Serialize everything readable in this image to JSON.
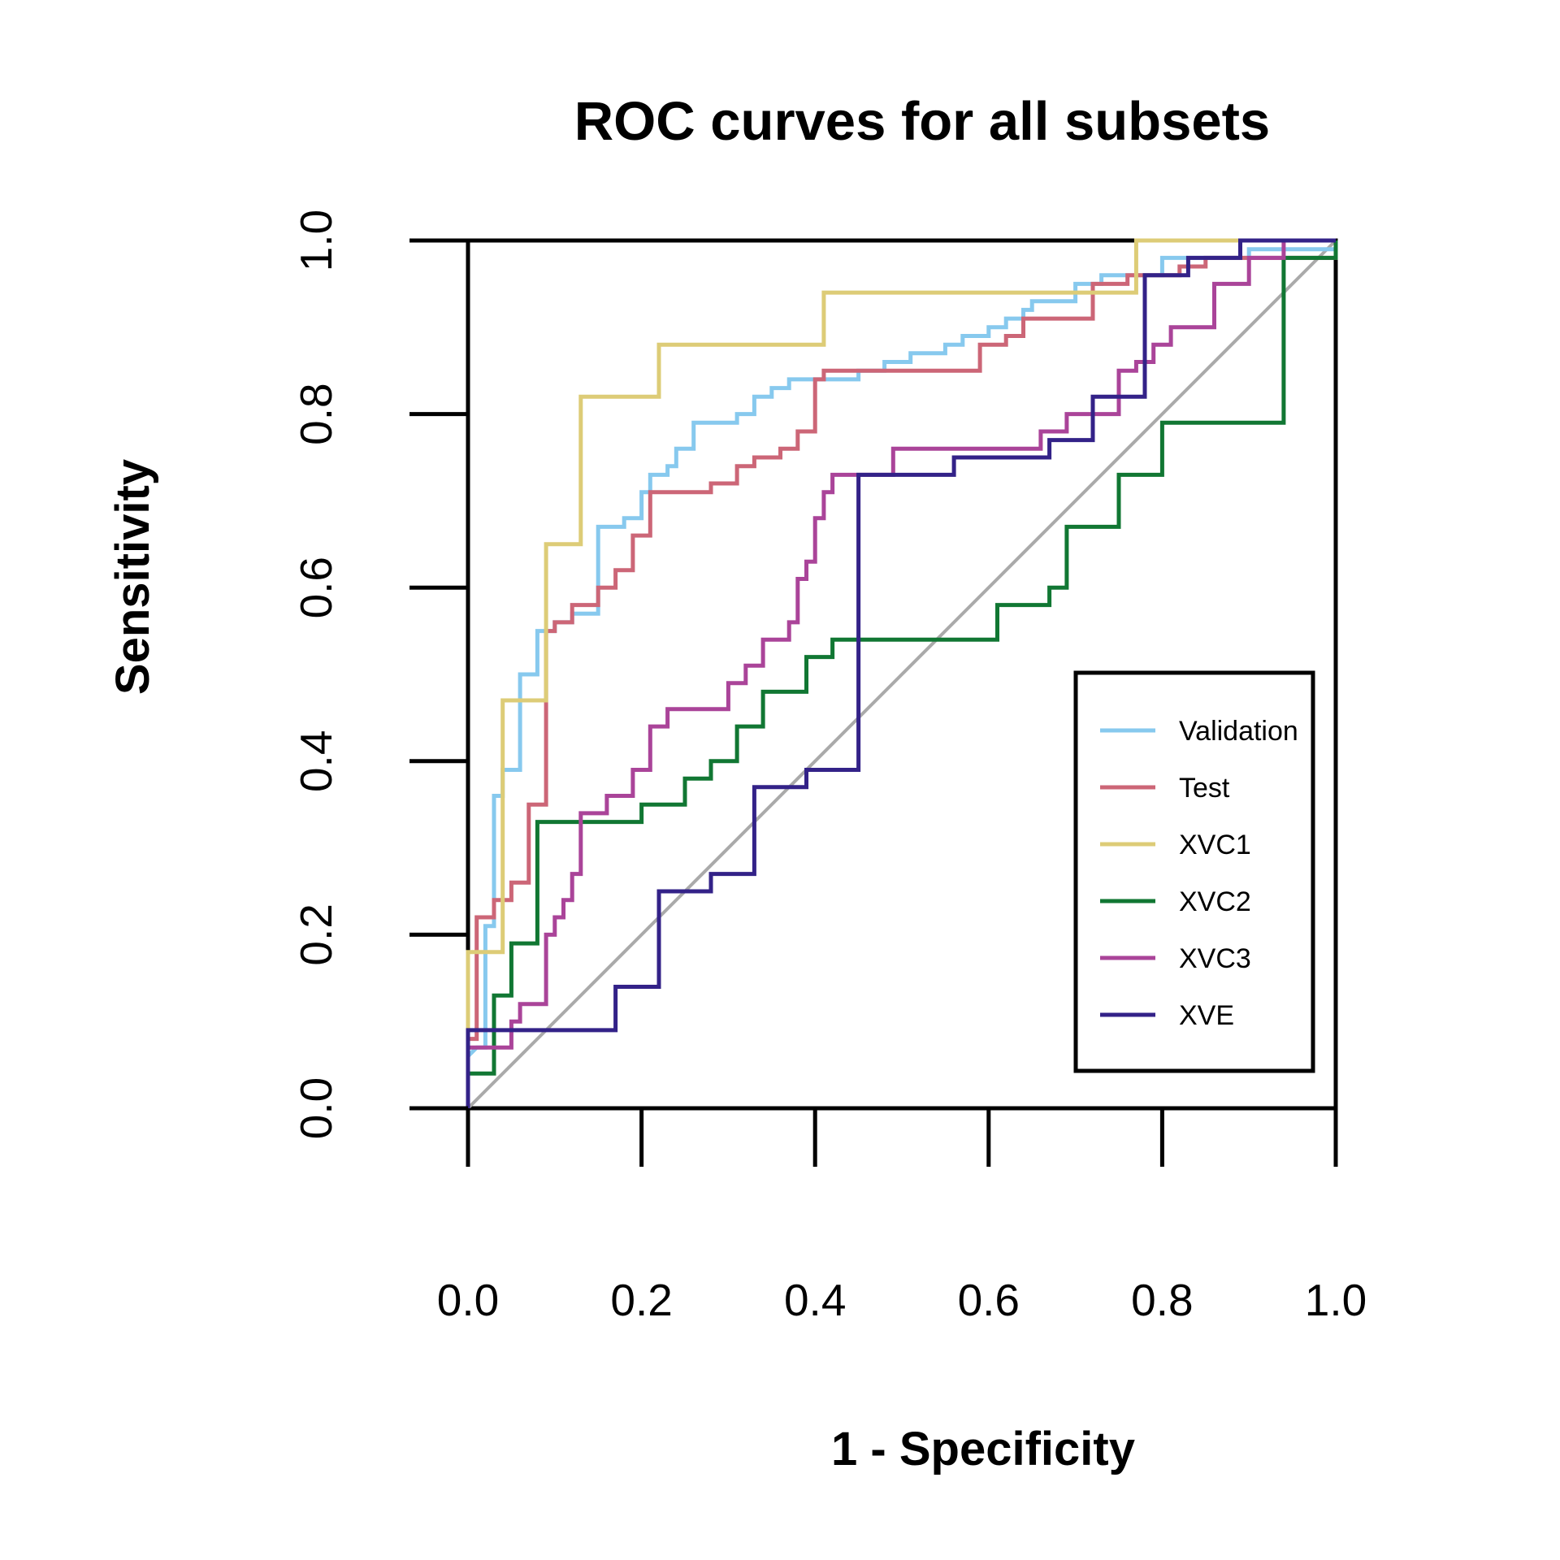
{
  "chart_data": {
    "type": "line",
    "title": "ROC curves for all subsets",
    "xlabel": "1 - Specificity",
    "ylabel": "Sensitivity",
    "xlim": [
      0,
      1
    ],
    "ylim": [
      0,
      1
    ],
    "xticks": [
      "0.0",
      "0.2",
      "0.4",
      "0.6",
      "0.8",
      "1.0"
    ],
    "yticks": [
      "0.0",
      "0.2",
      "0.4",
      "0.6",
      "0.8",
      "1.0"
    ],
    "grid": false,
    "legend_position": "bottom-right",
    "reference_line": {
      "points": [
        [
          0,
          0
        ],
        [
          1,
          1
        ]
      ],
      "color": "#aaaaaa"
    },
    "series": [
      {
        "name": "Validation",
        "color": "#87c9ee",
        "points": [
          [
            0,
            0.06
          ],
          [
            0.01,
            0.07
          ],
          [
            0.02,
            0.07
          ],
          [
            0.02,
            0.21
          ],
          [
            0.03,
            0.21
          ],
          [
            0.03,
            0.36
          ],
          [
            0.04,
            0.36
          ],
          [
            0.04,
            0.39
          ],
          [
            0.06,
            0.39
          ],
          [
            0.06,
            0.5
          ],
          [
            0.08,
            0.5
          ],
          [
            0.08,
            0.55
          ],
          [
            0.1,
            0.55
          ],
          [
            0.1,
            0.56
          ],
          [
            0.12,
            0.56
          ],
          [
            0.12,
            0.57
          ],
          [
            0.15,
            0.57
          ],
          [
            0.15,
            0.67
          ],
          [
            0.18,
            0.67
          ],
          [
            0.18,
            0.68
          ],
          [
            0.2,
            0.68
          ],
          [
            0.2,
            0.71
          ],
          [
            0.21,
            0.71
          ],
          [
            0.21,
            0.73
          ],
          [
            0.23,
            0.73
          ],
          [
            0.23,
            0.74
          ],
          [
            0.24,
            0.74
          ],
          [
            0.24,
            0.76
          ],
          [
            0.26,
            0.76
          ],
          [
            0.26,
            0.79
          ],
          [
            0.31,
            0.79
          ],
          [
            0.31,
            0.8
          ],
          [
            0.33,
            0.8
          ],
          [
            0.33,
            0.82
          ],
          [
            0.35,
            0.82
          ],
          [
            0.35,
            0.83
          ],
          [
            0.37,
            0.83
          ],
          [
            0.37,
            0.84
          ],
          [
            0.45,
            0.84
          ],
          [
            0.45,
            0.85
          ],
          [
            0.48,
            0.85
          ],
          [
            0.48,
            0.86
          ],
          [
            0.51,
            0.86
          ],
          [
            0.51,
            0.87
          ],
          [
            0.55,
            0.87
          ],
          [
            0.55,
            0.88
          ],
          [
            0.57,
            0.88
          ],
          [
            0.57,
            0.89
          ],
          [
            0.6,
            0.89
          ],
          [
            0.6,
            0.9
          ],
          [
            0.62,
            0.9
          ],
          [
            0.62,
            0.91
          ],
          [
            0.64,
            0.91
          ],
          [
            0.64,
            0.92
          ],
          [
            0.65,
            0.92
          ],
          [
            0.65,
            0.93
          ],
          [
            0.7,
            0.93
          ],
          [
            0.7,
            0.95
          ],
          [
            0.73,
            0.95
          ],
          [
            0.73,
            0.96
          ],
          [
            0.8,
            0.96
          ],
          [
            0.8,
            0.98
          ],
          [
            0.9,
            0.98
          ],
          [
            0.9,
            0.99
          ],
          [
            1,
            0.99
          ],
          [
            1,
            1
          ]
        ]
      },
      {
        "name": "Test",
        "color": "#cc6677",
        "points": [
          [
            0,
            0.08
          ],
          [
            0.01,
            0.08
          ],
          [
            0.01,
            0.22
          ],
          [
            0.03,
            0.22
          ],
          [
            0.03,
            0.24
          ],
          [
            0.05,
            0.24
          ],
          [
            0.05,
            0.26
          ],
          [
            0.07,
            0.26
          ],
          [
            0.07,
            0.35
          ],
          [
            0.09,
            0.35
          ],
          [
            0.09,
            0.55
          ],
          [
            0.1,
            0.55
          ],
          [
            0.1,
            0.56
          ],
          [
            0.12,
            0.56
          ],
          [
            0.12,
            0.58
          ],
          [
            0.15,
            0.58
          ],
          [
            0.15,
            0.6
          ],
          [
            0.17,
            0.6
          ],
          [
            0.17,
            0.62
          ],
          [
            0.19,
            0.62
          ],
          [
            0.19,
            0.66
          ],
          [
            0.21,
            0.66
          ],
          [
            0.21,
            0.71
          ],
          [
            0.28,
            0.71
          ],
          [
            0.28,
            0.72
          ],
          [
            0.31,
            0.72
          ],
          [
            0.31,
            0.74
          ],
          [
            0.33,
            0.74
          ],
          [
            0.33,
            0.75
          ],
          [
            0.36,
            0.75
          ],
          [
            0.36,
            0.76
          ],
          [
            0.38,
            0.76
          ],
          [
            0.38,
            0.78
          ],
          [
            0.4,
            0.78
          ],
          [
            0.4,
            0.84
          ],
          [
            0.41,
            0.84
          ],
          [
            0.41,
            0.85
          ],
          [
            0.59,
            0.85
          ],
          [
            0.59,
            0.88
          ],
          [
            0.62,
            0.88
          ],
          [
            0.62,
            0.89
          ],
          [
            0.64,
            0.89
          ],
          [
            0.64,
            0.91
          ],
          [
            0.72,
            0.91
          ],
          [
            0.72,
            0.95
          ],
          [
            0.76,
            0.95
          ],
          [
            0.76,
            0.96
          ],
          [
            0.82,
            0.96
          ],
          [
            0.82,
            0.97
          ],
          [
            0.85,
            0.97
          ],
          [
            0.85,
            0.98
          ],
          [
            1,
            0.98
          ],
          [
            1,
            1
          ]
        ]
      },
      {
        "name": "XVC1",
        "color": "#ddcc77",
        "points": [
          [
            0,
            0.08
          ],
          [
            0,
            0.18
          ],
          [
            0.04,
            0.18
          ],
          [
            0.04,
            0.47
          ],
          [
            0.09,
            0.47
          ],
          [
            0.09,
            0.65
          ],
          [
            0.13,
            0.65
          ],
          [
            0.13,
            0.82
          ],
          [
            0.22,
            0.82
          ],
          [
            0.22,
            0.88
          ],
          [
            0.41,
            0.88
          ],
          [
            0.41,
            0.94
          ],
          [
            0.77,
            0.94
          ],
          [
            0.77,
            1
          ],
          [
            1,
            1
          ]
        ]
      },
      {
        "name": "XVC2",
        "color": "#117733",
        "points": [
          [
            0,
            0.04
          ],
          [
            0.03,
            0.04
          ],
          [
            0.03,
            0.13
          ],
          [
            0.05,
            0.13
          ],
          [
            0.05,
            0.19
          ],
          [
            0.08,
            0.19
          ],
          [
            0.08,
            0.33
          ],
          [
            0.2,
            0.33
          ],
          [
            0.2,
            0.35
          ],
          [
            0.25,
            0.35
          ],
          [
            0.25,
            0.38
          ],
          [
            0.28,
            0.38
          ],
          [
            0.28,
            0.4
          ],
          [
            0.31,
            0.4
          ],
          [
            0.31,
            0.44
          ],
          [
            0.34,
            0.44
          ],
          [
            0.34,
            0.48
          ],
          [
            0.39,
            0.48
          ],
          [
            0.39,
            0.52
          ],
          [
            0.42,
            0.52
          ],
          [
            0.42,
            0.54
          ],
          [
            0.61,
            0.54
          ],
          [
            0.61,
            0.58
          ],
          [
            0.67,
            0.58
          ],
          [
            0.67,
            0.6
          ],
          [
            0.69,
            0.6
          ],
          [
            0.69,
            0.67
          ],
          [
            0.75,
            0.67
          ],
          [
            0.75,
            0.73
          ],
          [
            0.8,
            0.73
          ],
          [
            0.8,
            0.79
          ],
          [
            0.94,
            0.79
          ],
          [
            0.94,
            0.98
          ],
          [
            1,
            0.98
          ],
          [
            1,
            1
          ]
        ]
      },
      {
        "name": "XVC3",
        "color": "#aa4499",
        "points": [
          [
            0,
            0.07
          ],
          [
            0.05,
            0.07
          ],
          [
            0.05,
            0.1
          ],
          [
            0.06,
            0.1
          ],
          [
            0.06,
            0.12
          ],
          [
            0.09,
            0.12
          ],
          [
            0.09,
            0.2
          ],
          [
            0.1,
            0.2
          ],
          [
            0.1,
            0.22
          ],
          [
            0.11,
            0.22
          ],
          [
            0.11,
            0.24
          ],
          [
            0.12,
            0.24
          ],
          [
            0.12,
            0.27
          ],
          [
            0.13,
            0.27
          ],
          [
            0.13,
            0.34
          ],
          [
            0.16,
            0.34
          ],
          [
            0.16,
            0.36
          ],
          [
            0.19,
            0.36
          ],
          [
            0.19,
            0.39
          ],
          [
            0.21,
            0.39
          ],
          [
            0.21,
            0.44
          ],
          [
            0.23,
            0.44
          ],
          [
            0.23,
            0.46
          ],
          [
            0.3,
            0.46
          ],
          [
            0.3,
            0.49
          ],
          [
            0.32,
            0.49
          ],
          [
            0.32,
            0.51
          ],
          [
            0.34,
            0.51
          ],
          [
            0.34,
            0.54
          ],
          [
            0.37,
            0.54
          ],
          [
            0.37,
            0.56
          ],
          [
            0.38,
            0.56
          ],
          [
            0.38,
            0.61
          ],
          [
            0.39,
            0.61
          ],
          [
            0.39,
            0.63
          ],
          [
            0.4,
            0.63
          ],
          [
            0.4,
            0.68
          ],
          [
            0.41,
            0.68
          ],
          [
            0.41,
            0.71
          ],
          [
            0.42,
            0.71
          ],
          [
            0.42,
            0.73
          ],
          [
            0.49,
            0.73
          ],
          [
            0.49,
            0.76
          ],
          [
            0.66,
            0.76
          ],
          [
            0.66,
            0.78
          ],
          [
            0.69,
            0.78
          ],
          [
            0.69,
            0.8
          ],
          [
            0.75,
            0.8
          ],
          [
            0.75,
            0.85
          ],
          [
            0.77,
            0.85
          ],
          [
            0.77,
            0.86
          ],
          [
            0.79,
            0.86
          ],
          [
            0.79,
            0.88
          ],
          [
            0.81,
            0.88
          ],
          [
            0.81,
            0.9
          ],
          [
            0.86,
            0.9
          ],
          [
            0.86,
            0.95
          ],
          [
            0.9,
            0.95
          ],
          [
            0.9,
            0.98
          ],
          [
            0.94,
            0.98
          ],
          [
            0.94,
            1
          ],
          [
            1,
            1
          ]
        ]
      },
      {
        "name": "XVE",
        "color": "#332288",
        "points": [
          [
            0,
            0
          ],
          [
            0,
            0.09
          ],
          [
            0.17,
            0.09
          ],
          [
            0.17,
            0.14
          ],
          [
            0.22,
            0.14
          ],
          [
            0.22,
            0.25
          ],
          [
            0.28,
            0.25
          ],
          [
            0.28,
            0.27
          ],
          [
            0.33,
            0.27
          ],
          [
            0.33,
            0.37
          ],
          [
            0.39,
            0.37
          ],
          [
            0.39,
            0.39
          ],
          [
            0.45,
            0.39
          ],
          [
            0.45,
            0.73
          ],
          [
            0.56,
            0.73
          ],
          [
            0.56,
            0.75
          ],
          [
            0.67,
            0.75
          ],
          [
            0.67,
            0.77
          ],
          [
            0.72,
            0.77
          ],
          [
            0.72,
            0.82
          ],
          [
            0.78,
            0.82
          ],
          [
            0.78,
            0.96
          ],
          [
            0.83,
            0.96
          ],
          [
            0.83,
            0.98
          ],
          [
            0.89,
            0.98
          ],
          [
            0.89,
            1
          ],
          [
            1,
            1
          ]
        ]
      }
    ]
  }
}
